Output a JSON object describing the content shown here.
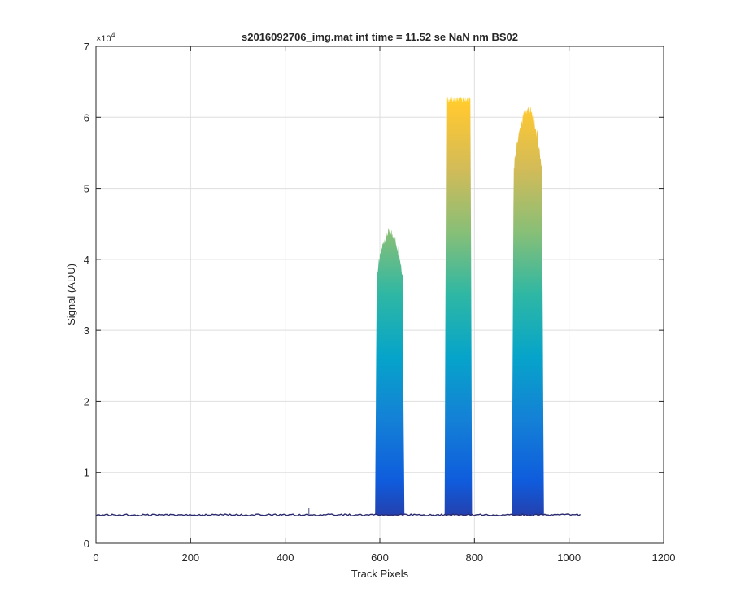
{
  "chart_data": {
    "type": "area",
    "title": "s2016092706_img.mat int time = 11.52 se  NaN nm BS02",
    "xlabel": "Track Pixels",
    "ylabel": "Signal (ADU)",
    "y_exponent_label": "×10",
    "y_exponent": "4",
    "xlim": [
      0,
      1200
    ],
    "ylim": [
      0,
      70000
    ],
    "x_ticks": [
      0,
      200,
      400,
      600,
      800,
      1000,
      1200
    ],
    "x_tick_labels": [
      "0",
      "200",
      "400",
      "600",
      "800",
      "1000",
      "1200"
    ],
    "y_ticks": [
      0,
      10000,
      20000,
      30000,
      40000,
      50000,
      60000,
      70000
    ],
    "y_tick_labels": [
      "0",
      "1",
      "2",
      "3",
      "4",
      "5",
      "6",
      "7"
    ],
    "grid": true,
    "colormap": "parula",
    "colormap_stops": [
      "#352a87",
      "#0f5cdd",
      "#1481d6",
      "#06a4ca",
      "#2eb7a4",
      "#87bf77",
      "#d1bb59",
      "#fec832",
      "#f9fb0e"
    ],
    "baseline": {
      "x_range": [
        0,
        1024
      ],
      "value": 4000,
      "color": "#2a2a6e"
    },
    "spike": {
      "x": 450,
      "value": 5000
    },
    "series": [
      {
        "x_range": [
          590,
          652
        ],
        "peak": 44500,
        "shape": "rounded"
      },
      {
        "x_range": [
          737,
          795
        ],
        "peak": 63000,
        "shape": "saturated"
      },
      {
        "x_range": [
          879,
          947
        ],
        "peak": 62000,
        "shape": "rounded"
      }
    ]
  }
}
